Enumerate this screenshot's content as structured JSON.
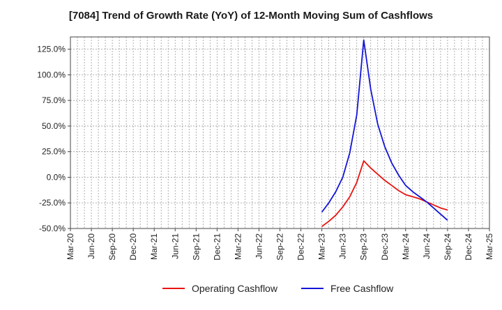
{
  "chart_data": {
    "type": "line",
    "title": "[7084]  Trend of Growth Rate (YoY) of 12-Month Moving Sum of Cashflows",
    "xlabel": "",
    "ylabel": "",
    "x_ticks": [
      "Mar-20",
      "Jun-20",
      "Sep-20",
      "Dec-20",
      "Mar-21",
      "Jun-21",
      "Sep-21",
      "Dec-21",
      "Mar-22",
      "Jun-22",
      "Sep-22",
      "Dec-22",
      "Mar-23",
      "Jun-23",
      "Sep-23",
      "Dec-23",
      "Mar-24",
      "Jun-24",
      "Sep-24",
      "Dec-24",
      "Mar-25"
    ],
    "y_ticks": [
      "125.0%",
      "100.0%",
      "75.0%",
      "50.0%",
      "25.0%",
      "0.0%",
      "-25.0%",
      "-50.0%"
    ],
    "y_tick_values": [
      125,
      100,
      75,
      50,
      25,
      0,
      -25,
      -50
    ],
    "ylim": [
      -50,
      137
    ],
    "grid": true,
    "legend_position": "bottom",
    "x": [
      "Mar-23",
      "Apr-23",
      "May-23",
      "Jun-23",
      "Jul-23",
      "Aug-23",
      "Sep-23",
      "Oct-23",
      "Nov-23",
      "Dec-23",
      "Jan-24",
      "Feb-24",
      "Mar-24",
      "Apr-24",
      "May-24",
      "Jun-24",
      "Jul-24",
      "Aug-24",
      "Sep-24"
    ],
    "series": [
      {
        "name": "Operating Cashflow",
        "color": "#e8140f",
        "values": [
          -48,
          -43,
          -37,
          -29,
          -19,
          -5,
          16,
          9,
          3,
          -3,
          -8,
          -13,
          -17,
          -19,
          -21,
          -24,
          -27,
          -30,
          -32
        ]
      },
      {
        "name": "Free Cashflow",
        "color": "#1414d8",
        "values": [
          -34,
          -25,
          -14,
          0,
          24,
          61,
          134,
          86,
          52,
          30,
          14,
          2,
          -8,
          -14,
          -19,
          -24,
          -30,
          -36,
          -42
        ]
      }
    ]
  }
}
